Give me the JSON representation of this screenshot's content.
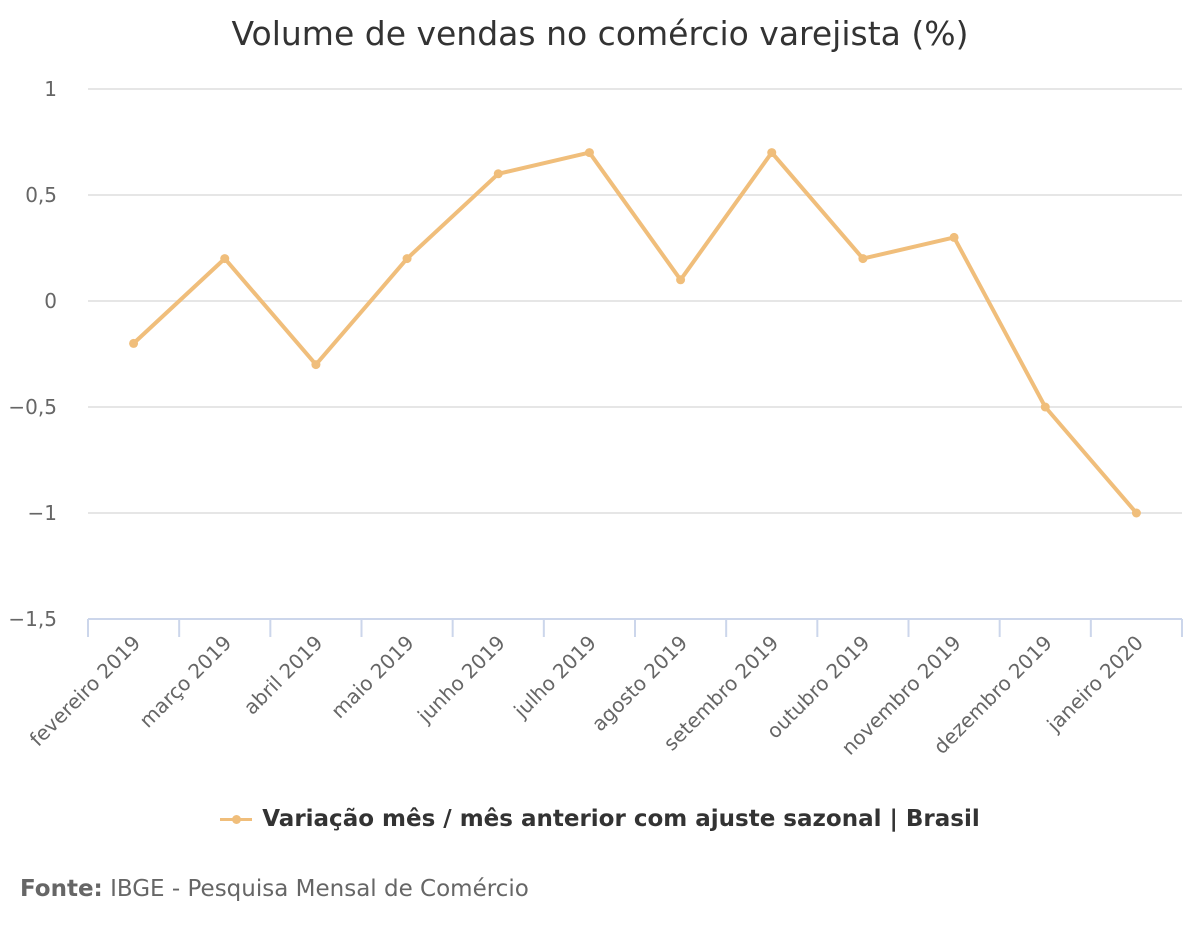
{
  "chart_data": {
    "type": "line",
    "title": "Volume de vendas no comércio varejista (%)",
    "categories": [
      "fevereiro 2019",
      "março 2019",
      "abril 2019",
      "maio 2019",
      "junho 2019",
      "julho 2019",
      "agosto 2019",
      "setembro 2019",
      "outubro 2019",
      "novembro 2019",
      "dezembro 2019",
      "janeiro 2020"
    ],
    "series": [
      {
        "name": "Variação mês / mês anterior com ajuste sazonal | Brasil",
        "values": [
          -0.2,
          0.2,
          -0.3,
          0.2,
          0.6,
          0.7,
          0.1,
          0.7,
          0.2,
          0.3,
          -0.5,
          -1.0
        ],
        "color": "#F0BE7B"
      }
    ],
    "ylim": [
      -1.5,
      1
    ],
    "yticks": [
      1,
      0.5,
      0,
      -0.5,
      -1,
      -1.5
    ],
    "ytick_labels": [
      "1",
      "0,5",
      "0",
      "−0,5",
      "−1",
      "−1,5"
    ],
    "grid": true,
    "legend": "bottom"
  },
  "source": {
    "label": "Fonte:",
    "text": "IBGE - Pesquisa Mensal de Comércio"
  }
}
